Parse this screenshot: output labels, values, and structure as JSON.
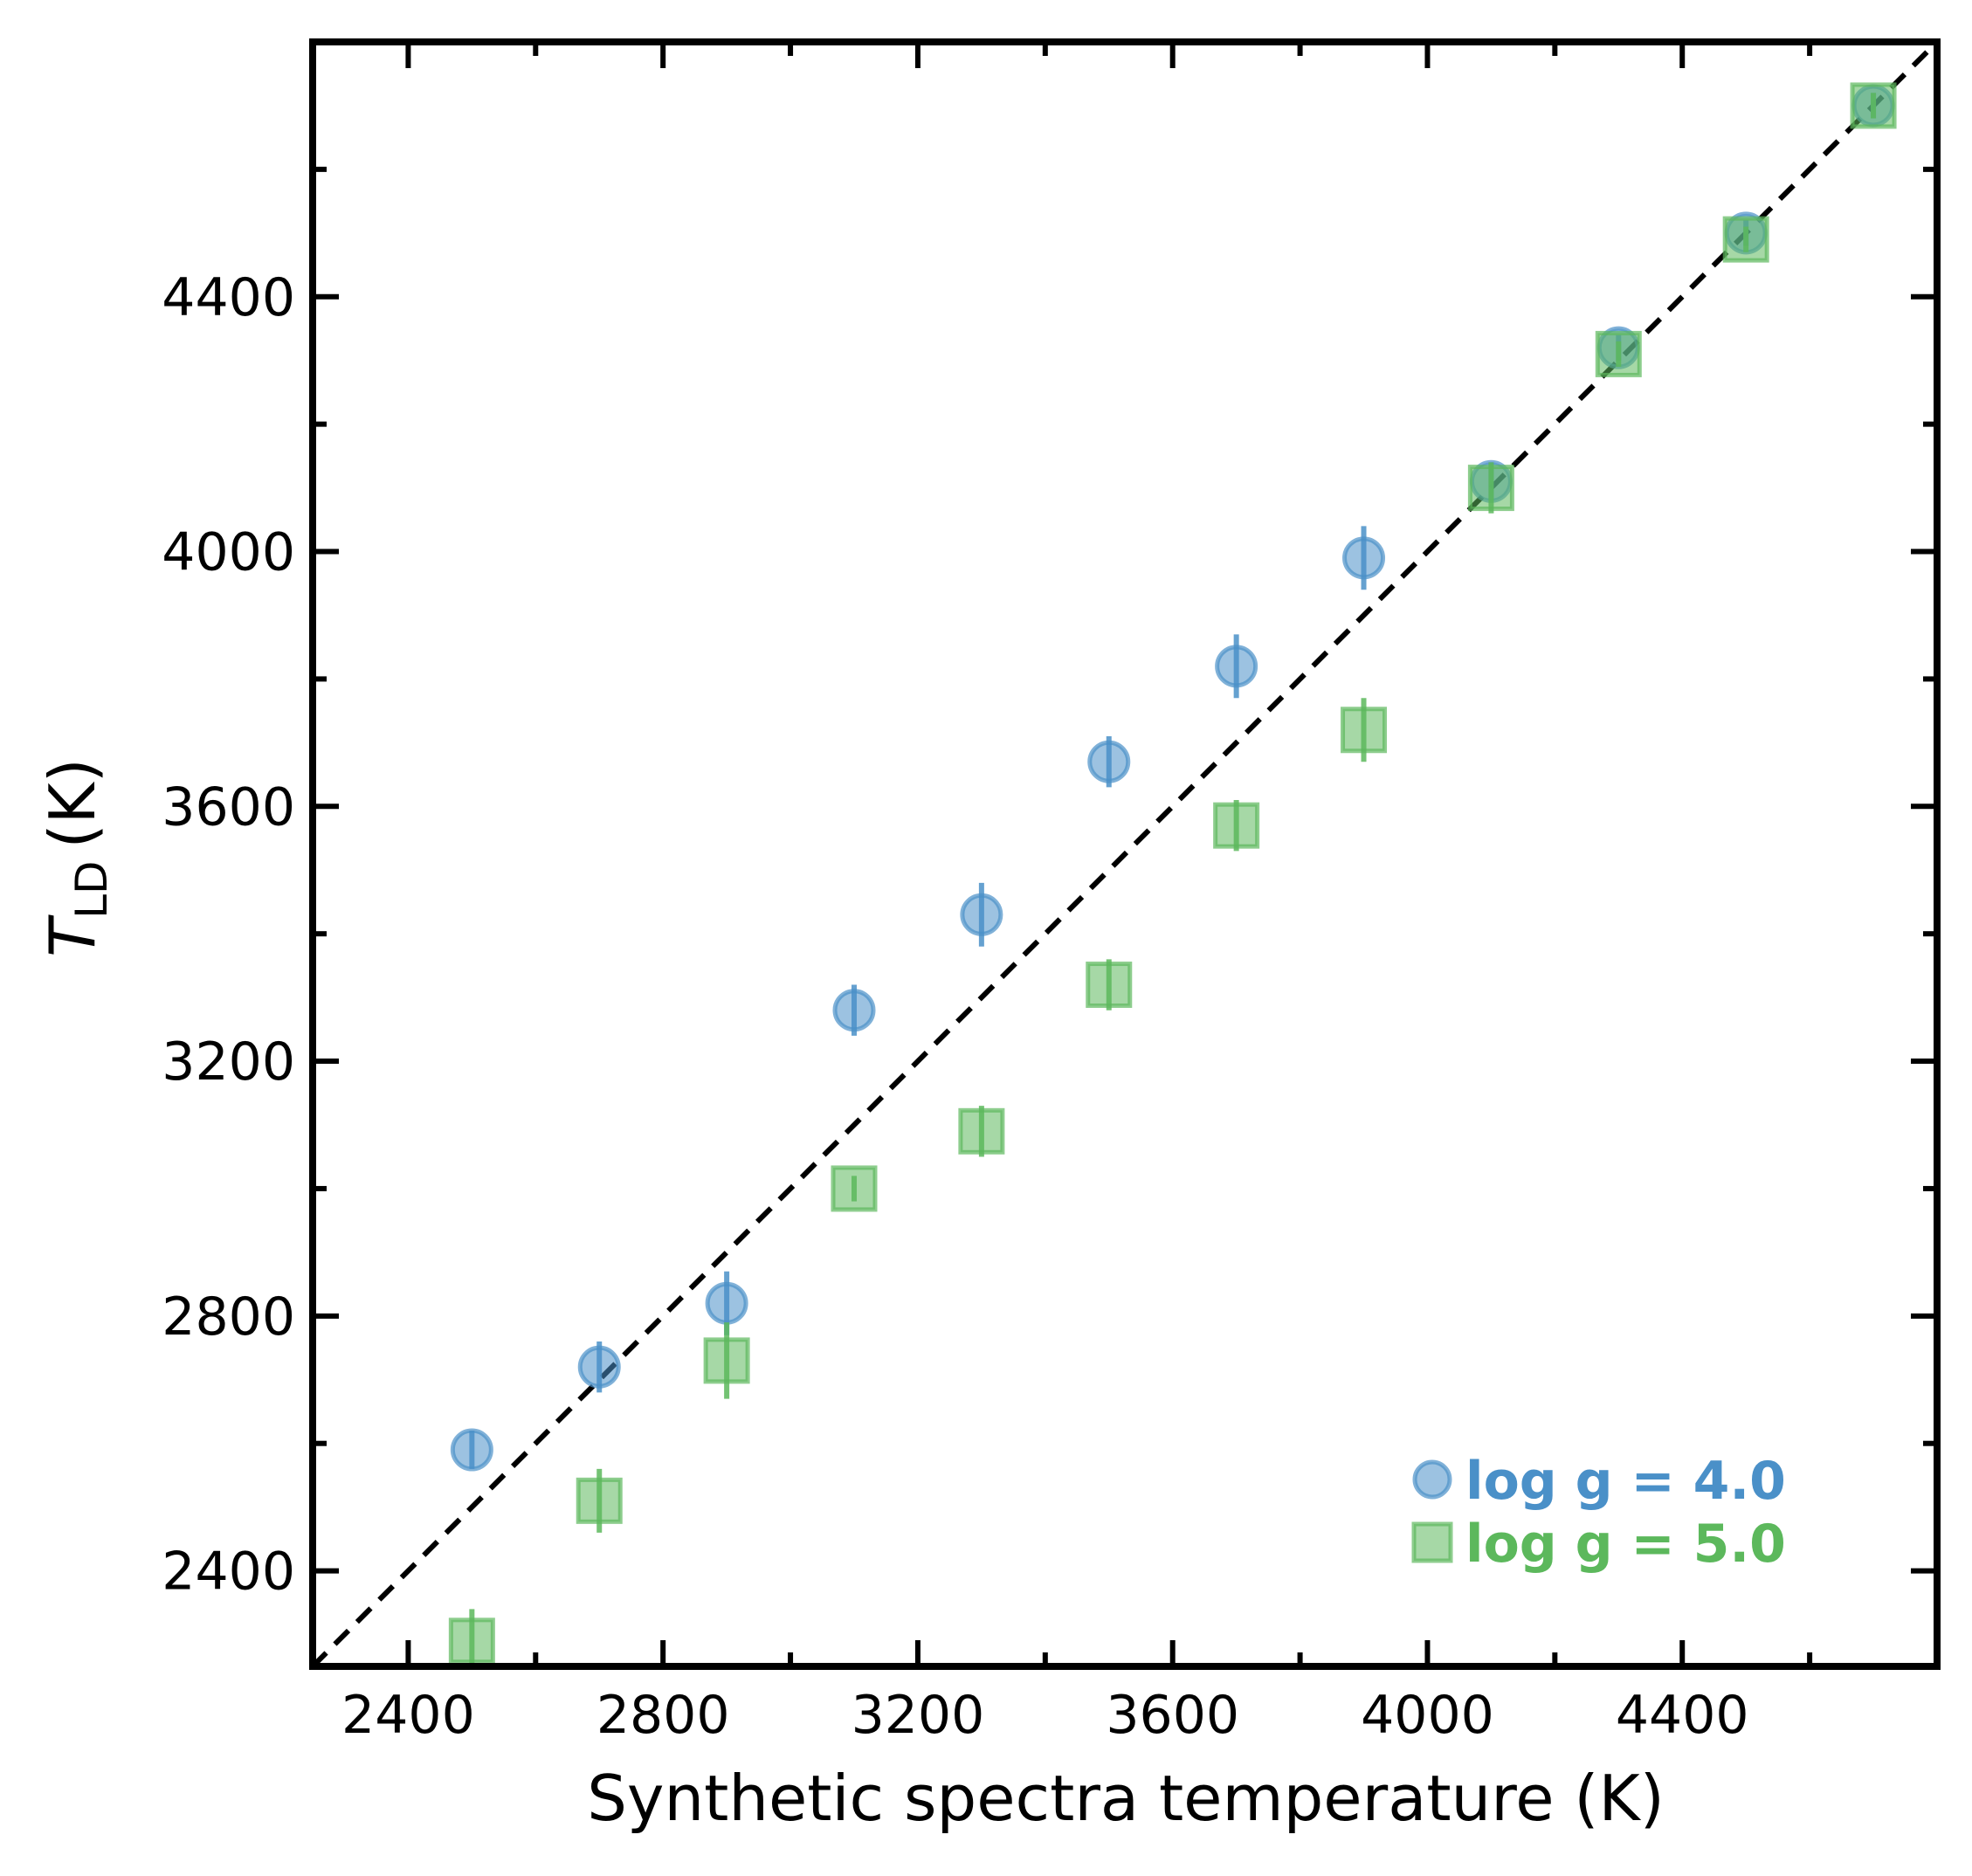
{
  "chart_data": {
    "type": "scatter",
    "xlabel": "Synthetic spectra temperature (K)",
    "ylabel": {
      "symbol": "T",
      "subscript": "LD",
      "unit": "(K)"
    },
    "xlim": [
      2250,
      4800
    ],
    "ylim": [
      2250,
      4800
    ],
    "x_ticks": [
      2400,
      2800,
      3200,
      3600,
      4000,
      4400
    ],
    "y_ticks": [
      2400,
      2800,
      3200,
      3600,
      4000,
      4400
    ],
    "x_minor_ticks": [
      2600,
      3000,
      3400,
      3800,
      4200,
      4600
    ],
    "y_minor_ticks": [
      2600,
      3000,
      3400,
      3800,
      4200,
      4600
    ],
    "reference_line": {
      "type": "y=x",
      "style": "dashed",
      "color": "#000000"
    },
    "legend_position": "lower-right",
    "grid": false,
    "series": [
      {
        "name": "log g = 4.0",
        "marker": "circle",
        "color": "#4a90c8",
        "points": [
          {
            "x": 2500,
            "y": 2590,
            "err": 30
          },
          {
            "x": 2700,
            "y": 2720,
            "err": 40
          },
          {
            "x": 2900,
            "y": 2820,
            "err": 50
          },
          {
            "x": 3100,
            "y": 3280,
            "err": 40
          },
          {
            "x": 3300,
            "y": 3430,
            "err": 50
          },
          {
            "x": 3500,
            "y": 3670,
            "err": 40
          },
          {
            "x": 3700,
            "y": 3820,
            "err": 50
          },
          {
            "x": 3900,
            "y": 3990,
            "err": 50
          },
          {
            "x": 4100,
            "y": 4110,
            "err": 30
          },
          {
            "x": 4300,
            "y": 4320,
            "err": 20
          },
          {
            "x": 4500,
            "y": 4500,
            "err": 20
          },
          {
            "x": 4700,
            "y": 4700,
            "err": 20
          }
        ]
      },
      {
        "name": "log g = 5.0",
        "marker": "square",
        "color": "#5cb85c",
        "points": [
          {
            "x": 2500,
            "y": 2290,
            "err": 50
          },
          {
            "x": 2700,
            "y": 2510,
            "err": 50
          },
          {
            "x": 2900,
            "y": 2730,
            "err": 60
          },
          {
            "x": 3100,
            "y": 3000,
            "err": 20
          },
          {
            "x": 3300,
            "y": 3090,
            "err": 40
          },
          {
            "x": 3500,
            "y": 3320,
            "err": 40
          },
          {
            "x": 3700,
            "y": 3570,
            "err": 40
          },
          {
            "x": 3900,
            "y": 3720,
            "err": 50
          },
          {
            "x": 4100,
            "y": 4100,
            "err": 40
          },
          {
            "x": 4300,
            "y": 4310,
            "err": 20
          },
          {
            "x": 4500,
            "y": 4490,
            "err": 20
          },
          {
            "x": 4700,
            "y": 4700,
            "err": 20
          }
        ]
      }
    ]
  }
}
